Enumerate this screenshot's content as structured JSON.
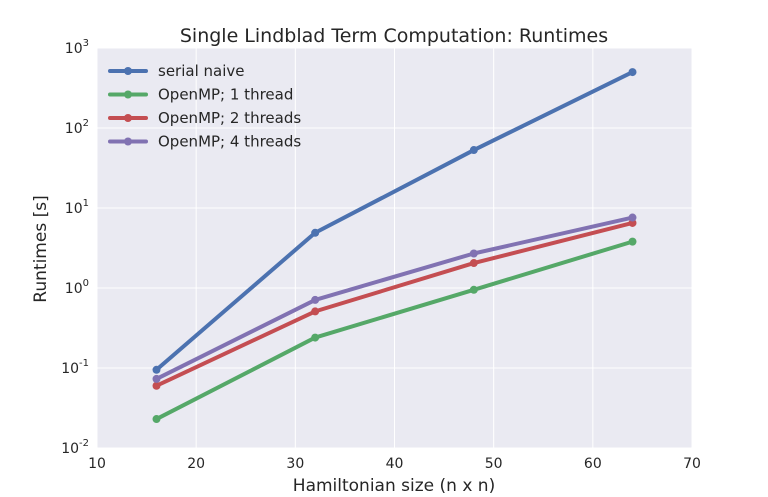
{
  "chart_data": {
    "type": "line",
    "title": "Single Lindblad Term Computation: Runtimes",
    "xlabel": "Hamiltonian size (n x n)",
    "ylabel": "Runtimes [s]",
    "xlim": [
      10,
      70
    ],
    "ylim": [
      0.01,
      1000
    ],
    "yscale": "log",
    "x_ticks": [
      "10",
      "20",
      "30",
      "40",
      "50",
      "60",
      "70"
    ],
    "y_ticks": [
      {
        "base": "10",
        "exp": "-2"
      },
      {
        "base": "10",
        "exp": "-1"
      },
      {
        "base": "10",
        "exp": "0"
      },
      {
        "base": "10",
        "exp": "1"
      },
      {
        "base": "10",
        "exp": "2"
      },
      {
        "base": "10",
        "exp": "3"
      }
    ],
    "grid": true,
    "legend_position": "top-left",
    "x": [
      16,
      32,
      48,
      64
    ],
    "series": [
      {
        "name": "serial naive",
        "color": "#4c72b0",
        "values": [
          0.095,
          4.9,
          53,
          500
        ]
      },
      {
        "name": "OpenMP; 1 thread",
        "color": "#55a868",
        "values": [
          0.023,
          0.24,
          0.95,
          3.8
        ]
      },
      {
        "name": "OpenMP; 2 threads",
        "color": "#c44e52",
        "values": [
          0.06,
          0.51,
          2.05,
          6.5
        ]
      },
      {
        "name": "OpenMP; 4 threads",
        "color": "#8172b2",
        "values": [
          0.073,
          0.71,
          2.7,
          7.6
        ]
      }
    ]
  }
}
